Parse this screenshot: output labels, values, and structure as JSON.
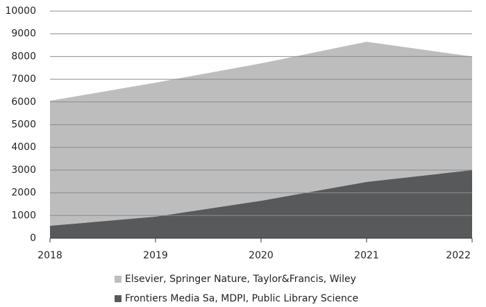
{
  "chart_data": {
    "type": "stacked-area",
    "categories": [
      "2018",
      "2019",
      "2020",
      "2021",
      "2022"
    ],
    "series": [
      {
        "name": "Frontiers Media Sa, MDPI, Public Library Science",
        "color": "#58595b",
        "values": [
          550,
          950,
          1650,
          2480,
          3000
        ]
      },
      {
        "name": "Elsevier, Springer Nature, Taylor&Francis, Wiley",
        "color": "#bdbdbe",
        "values": [
          5500,
          5900,
          6050,
          6170,
          5000
        ]
      }
    ],
    "ylim": [
      0,
      10000
    ],
    "yticks": [
      0,
      1000,
      2000,
      3000,
      4000,
      5000,
      6000,
      7000,
      8000,
      9000,
      10000
    ],
    "grid": true
  }
}
